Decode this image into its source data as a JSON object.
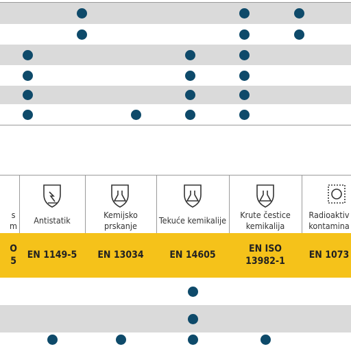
{
  "top_table": {
    "rows": [
      [
        false,
        true,
        false,
        false,
        true,
        true,
        false
      ],
      [
        false,
        true,
        false,
        false,
        true,
        true,
        false
      ],
      [
        true,
        false,
        false,
        true,
        true,
        false,
        false
      ],
      [
        true,
        false,
        false,
        true,
        true,
        false,
        false
      ],
      [
        true,
        false,
        false,
        true,
        true,
        false,
        false
      ],
      [
        true,
        false,
        true,
        true,
        true,
        false,
        false
      ]
    ]
  },
  "bottom_table": {
    "header_labels": [
      "s\nm",
      "Antistatik",
      "Kemijsko\nprskanje",
      "Tekuće kemikalije",
      "Krute čestice\nkemikalija",
      "Radioaktiv\nkontamina"
    ],
    "standards": [
      "O\n5",
      "EN 1149-5",
      "EN 13034",
      "EN 14605",
      "EN ISO\n13982-1",
      "EN 1073"
    ],
    "rows": [
      [
        false,
        false,
        false,
        true,
        false,
        false
      ],
      [
        false,
        false,
        false,
        true,
        false,
        false
      ],
      [
        false,
        true,
        true,
        true,
        true,
        false
      ]
    ]
  }
}
